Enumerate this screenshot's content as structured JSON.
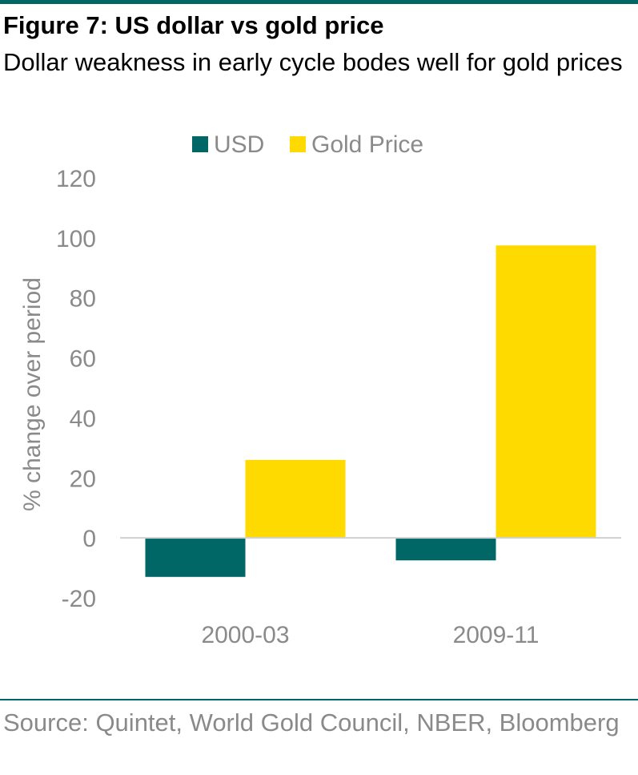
{
  "figure": {
    "title": "Figure 7: US dollar vs gold price",
    "subtitle": "Dollar weakness in early cycle bodes well for gold prices",
    "source": "Source: Quintet, World Gold Council, NBER, Bloomberg"
  },
  "chart_data": {
    "type": "bar",
    "categories": [
      "2000-03",
      "2009-11"
    ],
    "series": [
      {
        "name": "USD",
        "values": [
          -13,
          -7.5
        ],
        "color": "#006666"
      },
      {
        "name": "Gold Price",
        "values": [
          26,
          97.5
        ],
        "color": "#FFDA00"
      }
    ],
    "xlabel": "",
    "ylabel": "% change over period",
    "ylim": [
      -20,
      120
    ],
    "yticks": [
      -20,
      0,
      20,
      40,
      60,
      80,
      100,
      120
    ],
    "grid": false,
    "legend": "top"
  }
}
